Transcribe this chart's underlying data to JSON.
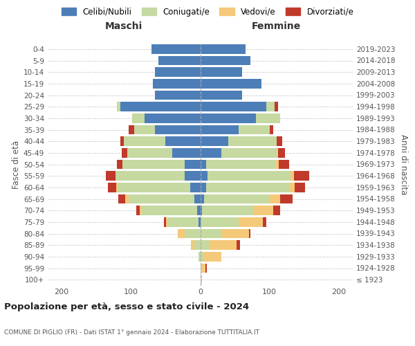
{
  "age_groups": [
    "100+",
    "95-99",
    "90-94",
    "85-89",
    "80-84",
    "75-79",
    "70-74",
    "65-69",
    "60-64",
    "55-59",
    "50-54",
    "45-49",
    "40-44",
    "35-39",
    "30-34",
    "25-29",
    "20-24",
    "15-19",
    "10-14",
    "5-9",
    "0-4"
  ],
  "birth_years": [
    "≤ 1923",
    "1924-1928",
    "1929-1933",
    "1934-1938",
    "1939-1943",
    "1944-1948",
    "1949-1953",
    "1954-1958",
    "1959-1963",
    "1964-1968",
    "1969-1973",
    "1974-1978",
    "1979-1983",
    "1984-1988",
    "1989-1993",
    "1994-1998",
    "1999-2003",
    "2004-2008",
    "2009-2013",
    "2014-2018",
    "2019-2023"
  ],
  "colors": {
    "celibi": "#4d7eb8",
    "coniugati": "#c5d9a0",
    "vedovi": "#f5c97a",
    "divorziati": "#c0392b"
  },
  "maschi": {
    "celibi": [
      0,
      0,
      0,
      0,
      0,
      2,
      4,
      8,
      14,
      22,
      22,
      40,
      50,
      65,
      80,
      115,
      65,
      68,
      65,
      60,
      70
    ],
    "coniugati": [
      0,
      0,
      2,
      8,
      22,
      45,
      80,
      95,
      105,
      100,
      90,
      65,
      60,
      30,
      18,
      5,
      0,
      0,
      0,
      0,
      0
    ],
    "vedovi": [
      0,
      0,
      0,
      5,
      10,
      2,
      3,
      5,
      2,
      0,
      0,
      0,
      0,
      0,
      0,
      0,
      0,
      0,
      0,
      0,
      0
    ],
    "divorziati": [
      0,
      0,
      0,
      0,
      0,
      3,
      5,
      10,
      12,
      14,
      8,
      8,
      5,
      8,
      0,
      0,
      0,
      0,
      0,
      0,
      0
    ]
  },
  "femmine": {
    "celibi": [
      0,
      0,
      0,
      0,
      0,
      0,
      2,
      5,
      8,
      10,
      8,
      30,
      40,
      55,
      80,
      95,
      60,
      88,
      60,
      72,
      65
    ],
    "coniugati": [
      0,
      2,
      5,
      12,
      30,
      55,
      75,
      95,
      120,
      120,
      100,
      80,
      70,
      45,
      35,
      12,
      0,
      0,
      0,
      0,
      0
    ],
    "vedovi": [
      2,
      5,
      25,
      40,
      40,
      35,
      28,
      15,
      8,
      5,
      5,
      2,
      0,
      0,
      0,
      0,
      0,
      0,
      0,
      0,
      0
    ],
    "divorziati": [
      0,
      2,
      0,
      5,
      2,
      5,
      10,
      18,
      15,
      22,
      15,
      10,
      8,
      5,
      0,
      5,
      0,
      0,
      0,
      0,
      0
    ]
  },
  "title": "Popolazione per età, sesso e stato civile - 2024",
  "subtitle": "COMUNE DI PIGLIO (FR) - Dati ISTAT 1° gennaio 2024 - Elaborazione TUTTITALIA.IT",
  "legend_labels": [
    "Celibi/Nubili",
    "Coniugati/e",
    "Vedovi/e",
    "Divorziati/e"
  ],
  "maschi_label": "Maschi",
  "femmine_label": "Femmine",
  "ylabel_left": "Fasce di età",
  "ylabel_right": "Anni di nascita",
  "xlim": 220,
  "bg_color": "#ffffff",
  "grid_color": "#cccccc",
  "text_color": "#555555",
  "title_color": "#222222"
}
